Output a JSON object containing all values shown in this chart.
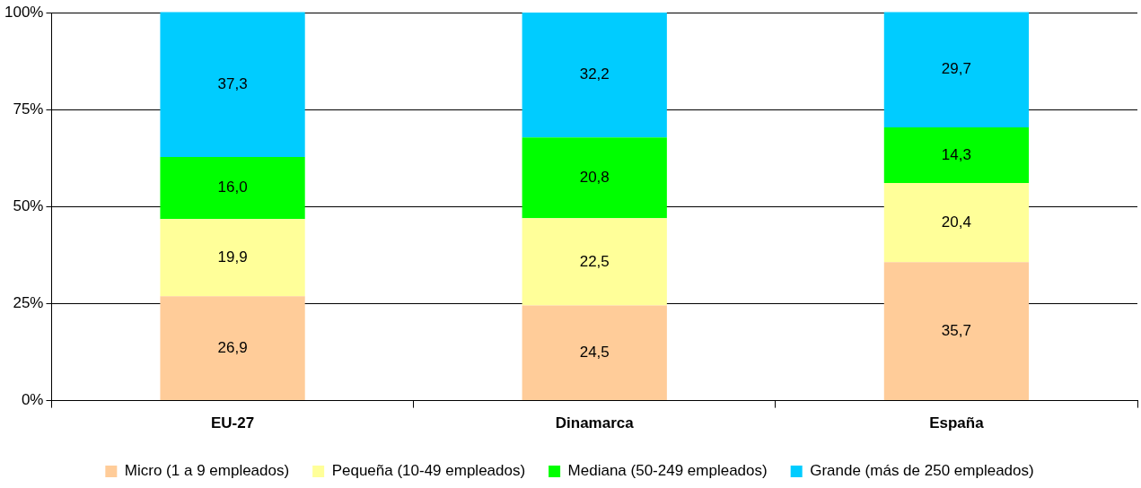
{
  "chart_data": {
    "type": "bar",
    "stacked": true,
    "categories": [
      "EU-27",
      "Dinamarca",
      "España"
    ],
    "series": [
      {
        "name": "Micro (1 a 9 empleados)",
        "color": "#ffcc99",
        "values": [
          26.9,
          24.5,
          35.7
        ],
        "value_labels": [
          "26,9",
          "24,5",
          "35,7"
        ]
      },
      {
        "name": "Pequeña (10-49 empleados)",
        "color": "#ffff99",
        "values": [
          19.9,
          22.5,
          20.4
        ],
        "value_labels": [
          "19,9",
          "22,5",
          "20,4"
        ]
      },
      {
        "name": "Mediana (50-249 empleados)",
        "color": "#00ff00",
        "values": [
          16.0,
          20.8,
          14.3
        ],
        "value_labels": [
          "16,0",
          "20,8",
          "14,3"
        ]
      },
      {
        "name": "Grande (más de 250 empleados)",
        "color": "#00ccff",
        "values": [
          37.3,
          32.2,
          29.7
        ],
        "value_labels": [
          "37,3",
          "32,2",
          "29,7"
        ]
      }
    ],
    "ylim": [
      0,
      100
    ],
    "yticks": [
      {
        "value": 0,
        "label": "0%"
      },
      {
        "value": 25,
        "label": "25%"
      },
      {
        "value": 50,
        "label": "50%"
      },
      {
        "value": 75,
        "label": "75%"
      },
      {
        "value": 100,
        "label": "100%"
      }
    ],
    "grid": "y",
    "legend": "bottom"
  }
}
